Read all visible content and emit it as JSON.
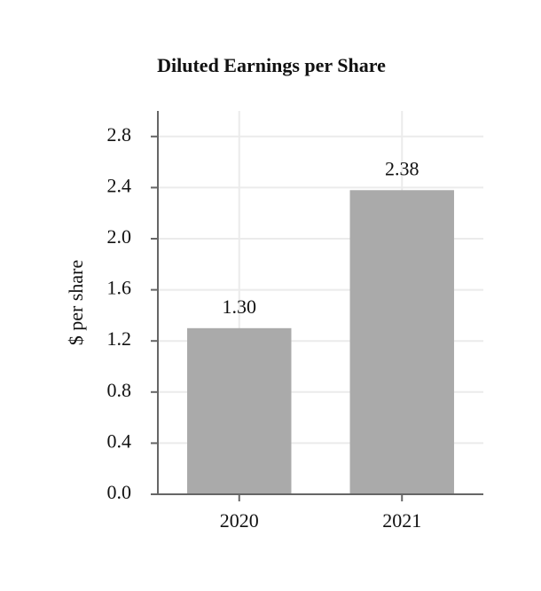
{
  "chart_data": {
    "type": "bar",
    "title": "Diluted Earnings per Share",
    "y_label": "$ per share",
    "categories": [
      "2020",
      "2021"
    ],
    "values": [
      1.3,
      2.38
    ],
    "value_labels": [
      "1.30",
      "2.38"
    ],
    "color": "#aaaaaa",
    "ylim": [
      0,
      3.0
    ],
    "yticks": [
      {
        "value": 0,
        "label": "0.0"
      },
      0.4,
      0.8,
      1.2,
      1.6,
      {
        "value": 2,
        "label": "2.0"
      },
      2.4,
      2.8
    ],
    "grid": true
  }
}
